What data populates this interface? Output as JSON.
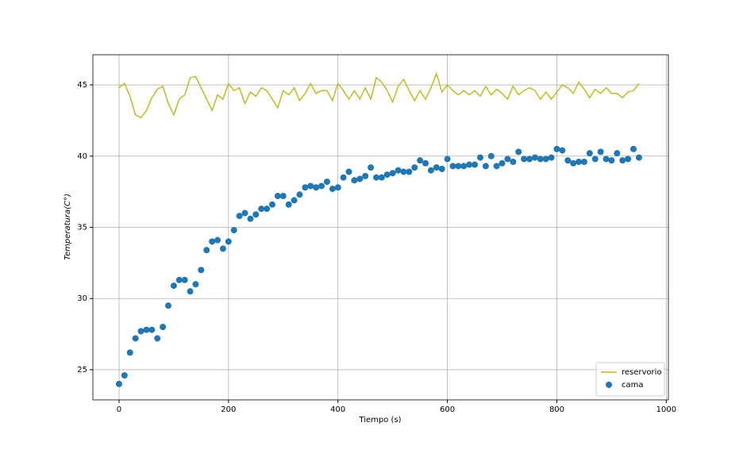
{
  "chart_data": {
    "type": "line",
    "xlabel": "Tiempo (s)",
    "ylabel": "Temperatura(C°)",
    "xlim": [
      -47.8,
      1003.8
    ],
    "ylim": [
      22.88,
      47.12
    ],
    "xticks": [
      0,
      200,
      400,
      600,
      800,
      1000
    ],
    "yticks": [
      25,
      30,
      35,
      40,
      45
    ],
    "grid": true,
    "legend": "lower right",
    "x": [
      0,
      10,
      20,
      30,
      40,
      50,
      60,
      70,
      80,
      90,
      100,
      110,
      120,
      130,
      140,
      150,
      160,
      170,
      180,
      190,
      200,
      210,
      220,
      230,
      240,
      250,
      260,
      270,
      280,
      290,
      300,
      310,
      320,
      330,
      340,
      350,
      360,
      370,
      380,
      390,
      400,
      410,
      420,
      430,
      440,
      450,
      460,
      470,
      480,
      490,
      500,
      510,
      520,
      530,
      540,
      550,
      560,
      570,
      580,
      590,
      600,
      610,
      620,
      630,
      640,
      650,
      660,
      670,
      680,
      690,
      700,
      710,
      720,
      730,
      740,
      750,
      760,
      770,
      780,
      790,
      800,
      810,
      820,
      830,
      840,
      850,
      860,
      870,
      880,
      890,
      900,
      910,
      920,
      930,
      940,
      950
    ],
    "series": [
      {
        "name": "reservorio",
        "type": "line",
        "color": "#bcbd22",
        "values": [
          44.8,
          45.1,
          44.2,
          42.9,
          42.7,
          43.2,
          44.1,
          44.7,
          44.9,
          43.7,
          42.9,
          44.0,
          44.3,
          45.5,
          45.6,
          44.8,
          44.0,
          43.2,
          44.3,
          44.0,
          45.1,
          44.6,
          44.8,
          43.7,
          44.5,
          44.2,
          44.8,
          44.6,
          44.0,
          43.4,
          44.6,
          44.3,
          44.8,
          43.9,
          44.4,
          45.1,
          44.4,
          44.6,
          44.6,
          43.9,
          45.1,
          44.6,
          44.0,
          44.6,
          44.0,
          44.8,
          44.0,
          45.5,
          45.2,
          44.6,
          43.8,
          44.9,
          45.4,
          44.6,
          43.9,
          44.6,
          44.0,
          44.8,
          45.8,
          44.5,
          45.0,
          44.6,
          44.3,
          44.6,
          44.3,
          44.6,
          44.2,
          44.9,
          44.3,
          44.7,
          44.4,
          44.0,
          44.9,
          44.3,
          44.6,
          44.8,
          44.6,
          44.0,
          44.5,
          44.0,
          44.5,
          45.0,
          44.8,
          44.4,
          45.2,
          44.7,
          44.1,
          44.7,
          44.4,
          44.8,
          44.4,
          44.4,
          44.1,
          44.5,
          44.6,
          45.1
        ]
      },
      {
        "name": "cama",
        "type": "scatter",
        "color": "#1f77b4",
        "values": [
          24.0,
          24.6,
          26.2,
          27.2,
          27.7,
          27.8,
          27.8,
          27.2,
          28.0,
          29.5,
          30.9,
          31.3,
          31.3,
          30.5,
          31.0,
          32.0,
          33.4,
          34.0,
          34.1,
          33.5,
          34.0,
          34.8,
          35.8,
          36.0,
          35.6,
          35.9,
          36.3,
          36.3,
          36.6,
          37.2,
          37.2,
          36.6,
          36.9,
          37.3,
          37.8,
          37.9,
          37.8,
          37.9,
          38.2,
          37.7,
          37.8,
          38.5,
          38.9,
          38.3,
          38.4,
          38.6,
          39.2,
          38.5,
          38.5,
          38.7,
          38.8,
          39.0,
          38.9,
          38.9,
          39.2,
          39.7,
          39.5,
          39.0,
          39.2,
          39.1,
          39.8,
          39.3,
          39.3,
          39.3,
          39.4,
          39.4,
          39.9,
          39.3,
          40.0,
          39.3,
          39.5,
          39.8,
          39.6,
          40.3,
          39.8,
          39.8,
          39.9,
          39.8,
          39.8,
          39.9,
          40.5,
          40.4,
          39.7,
          39.5,
          39.6,
          39.6,
          40.2,
          39.8,
          40.3,
          39.8,
          39.7,
          40.2,
          39.7,
          39.8,
          40.5,
          39.9
        ]
      }
    ]
  }
}
